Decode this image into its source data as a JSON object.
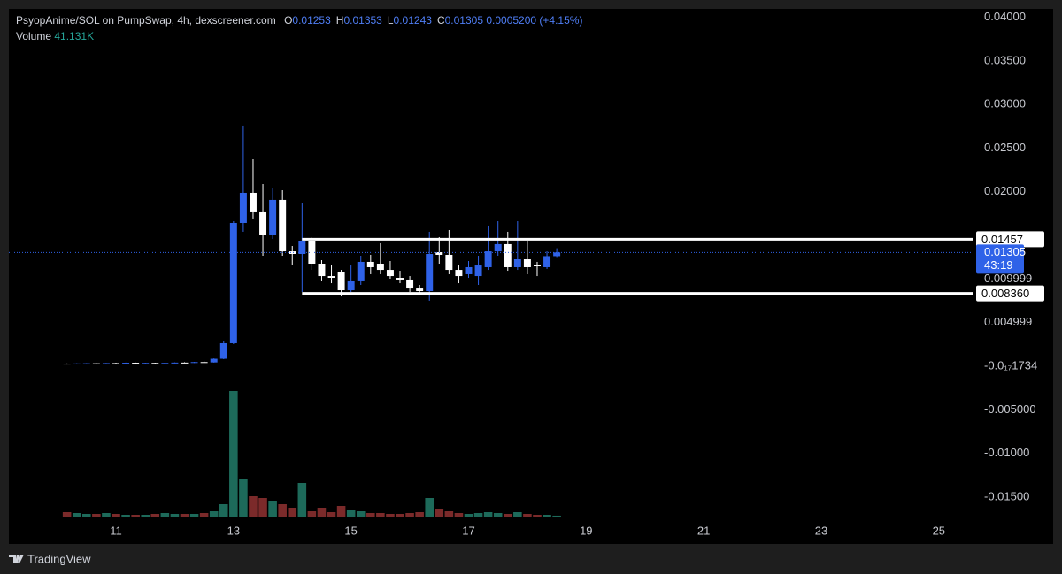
{
  "chart_data": {
    "type": "candlestick",
    "title": "PsyopAnime/SOL on PumpSwap, 4h, dexscreener.com",
    "ohlc_header": {
      "labels": [
        "O",
        "H",
        "L",
        "C"
      ],
      "values": [
        0.01253,
        0.01353,
        0.01243,
        0.01305
      ],
      "change": {
        "value": 0.00052,
        "label": "0.0005200"
      },
      "change_pct": {
        "value": 4.15,
        "label": "(+4.15%)"
      }
    },
    "volume_legend": {
      "name": "Volume",
      "value": 41131,
      "label": "41.131K"
    },
    "countdown": "43:19",
    "x": [
      10.1667,
      10.3333,
      10.5,
      10.6667,
      10.8333,
      11,
      11.1667,
      11.3333,
      11.5,
      11.6667,
      11.8333,
      12,
      12.1667,
      12.3333,
      12.5,
      12.6667,
      12.8333,
      13,
      13.1667,
      13.3333,
      13.5,
      13.6667,
      13.8333,
      14,
      14.1667,
      14.3333,
      14.5,
      14.6667,
      14.8333,
      15,
      15.1667,
      15.3333,
      15.5,
      15.6667,
      15.8333,
      16,
      16.1667,
      16.3333,
      16.5,
      16.6667,
      16.8333,
      17,
      17.1667,
      17.3333,
      17.5,
      17.6667,
      17.8333,
      18,
      18.1667,
      18.3333,
      18.5
    ],
    "open": [
      0.0003,
      0.00024,
      0.00032,
      0.00034,
      0.0003,
      0.00036,
      0.00034,
      0.0004,
      0.00036,
      0.00038,
      0.00032,
      0.00038,
      0.00042,
      0.0004,
      0.00048,
      0.00044,
      0.00086,
      0.00264,
      0.01643,
      0.01988,
      0.01765,
      0.01501,
      0.01907,
      0.01318,
      0.01288,
      0.0144,
      0.01176,
      0.01034,
      0.01075,
      0.00872,
      0.00974,
      0.01197,
      0.01176,
      0.01105,
      0.01014,
      0.00984,
      0.00892,
      0.00862,
      0.01308,
      0.01278,
      0.01105,
      0.01055,
      0.01034,
      0.01136,
      0.01318,
      0.014,
      0.01136,
      0.01227,
      0.01156,
      0.01136,
      0.01253
    ],
    "high": [
      0.00032,
      0.00034,
      0.00036,
      0.00036,
      0.00038,
      0.0004,
      0.00042,
      0.00042,
      0.0004,
      0.0004,
      0.0004,
      0.00044,
      0.00046,
      0.0005,
      0.00056,
      0.0009,
      0.00294,
      0.01663,
      0.02759,
      0.02373,
      0.02089,
      0.02039,
      0.02018,
      0.01379,
      0.01866,
      0.01481,
      0.01217,
      0.01156,
      0.01105,
      0.01156,
      0.01258,
      0.01278,
      0.0141,
      0.01207,
      0.01095,
      0.01034,
      0.00933,
      0.01542,
      0.01481,
      0.01562,
      0.01156,
      0.01207,
      0.01258,
      0.01613,
      0.01663,
      0.01542,
      0.01663,
      0.0144,
      0.01197,
      0.01318,
      0.01353
    ],
    "low": [
      0.0002,
      0.00022,
      0.00028,
      0.00026,
      0.00028,
      0.0003,
      0.00032,
      0.00034,
      0.00034,
      0.0003,
      0.0003,
      0.00034,
      0.00036,
      0.00038,
      0.0004,
      0.00042,
      0.00081,
      0.00254,
      0.01542,
      0.01684,
      0.01258,
      0.0146,
      0.01258,
      0.01156,
      0.00852,
      0.01105,
      0.00974,
      0.00953,
      0.00801,
      0.00852,
      0.00933,
      0.01055,
      0.01055,
      0.00994,
      0.00953,
      0.00852,
      0.00832,
      0.00751,
      0.01176,
      0.01055,
      0.00953,
      0.01014,
      0.00933,
      0.01105,
      0.01258,
      0.01095,
      0.01105,
      0.01055,
      0.01034,
      0.01116,
      0.01243
    ],
    "close": [
      0.00024,
      0.00032,
      0.00034,
      0.0003,
      0.00036,
      0.00034,
      0.0004,
      0.00036,
      0.00038,
      0.00032,
      0.00038,
      0.00042,
      0.0004,
      0.00048,
      0.00044,
      0.00086,
      0.00264,
      0.01643,
      0.01988,
      0.01765,
      0.01501,
      0.01907,
      0.01318,
      0.01288,
      0.0144,
      0.01176,
      0.01034,
      0.01014,
      0.00872,
      0.00974,
      0.01197,
      0.01136,
      0.01105,
      0.01034,
      0.00984,
      0.00892,
      0.00862,
      0.01288,
      0.01278,
      0.01105,
      0.01034,
      0.01136,
      0.01156,
      0.01318,
      0.014,
      0.01136,
      0.01227,
      0.01136,
      0.01146,
      0.01253,
      0.01305
    ],
    "volume": [
      120000,
      100000,
      80000,
      80000,
      100000,
      80000,
      60000,
      60000,
      60000,
      80000,
      100000,
      80000,
      80000,
      80000,
      100000,
      140000,
      300000,
      2860000,
      860000,
      480000,
      440000,
      380000,
      300000,
      220000,
      780000,
      140000,
      220000,
      120000,
      260000,
      160000,
      140000,
      100000,
      100000,
      80000,
      80000,
      100000,
      120000,
      440000,
      180000,
      140000,
      100000,
      80000,
      100000,
      120000,
      100000,
      80000,
      120000,
      80000,
      60000,
      60000,
      41131
    ],
    "up_color": "#2f62e8",
    "down_color": "#ffffff",
    "volume_up_color": "#1d6a5a",
    "volume_down_color": "#7b2a2a",
    "volume_ylim": [
      0,
      3500000
    ],
    "xlim": [
      9.178,
      25.59
    ],
    "xticks": [
      11,
      13,
      15,
      17,
      19,
      21,
      23,
      25
    ],
    "ylim": [
      -0.01734,
      0.04097
    ],
    "yticks": [
      {
        "value": 0.04,
        "label": "0.04000"
      },
      {
        "value": 0.035,
        "label": "0.03500"
      },
      {
        "value": 0.03,
        "label": "0.03000"
      },
      {
        "value": 0.025,
        "label": "0.02500"
      },
      {
        "value": 0.02,
        "label": "0.02000"
      },
      0.009999,
      0.004999,
      {
        "value": -1.734e-18,
        "label": "-0.0₁₇1734"
      },
      {
        "value": -0.005,
        "label": "-0.005000"
      },
      {
        "value": -0.01,
        "label": "-0.01000"
      },
      {
        "value": -0.015,
        "label": "-0.01500"
      }
    ],
    "hlines": [
      {
        "value": 0.01457,
        "label": "0.01457",
        "from_x": 14.1667
      },
      {
        "value": 0.00836,
        "label": "0.008360",
        "from_x": 14.1667
      }
    ],
    "branding": "TradingView"
  }
}
